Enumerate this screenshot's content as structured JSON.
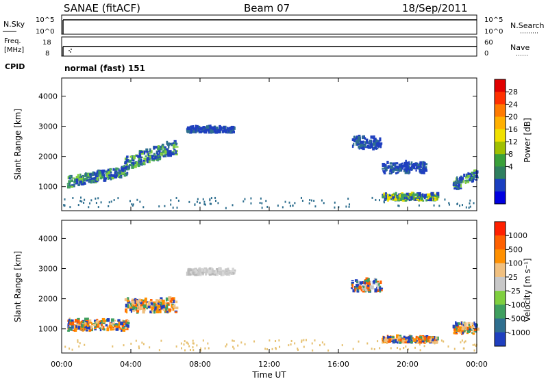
{
  "header": {
    "station": "SANAE (fitACF)",
    "beam": "Beam 07",
    "date": "18/Sep/2011"
  },
  "strip_panels": {
    "nsky": {
      "left_label": "N.Sky",
      "right_label": "N.Search",
      "left_ticks": [
        "10^5",
        "10^0"
      ],
      "right_ticks": [
        "10^5",
        "10^0"
      ]
    },
    "freq": {
      "left_label_1": "Freq.",
      "left_label_2": "[MHz]",
      "right_label": "Nave",
      "left_ticks": [
        "18",
        "8"
      ],
      "right_ticks": [
        "60",
        "0"
      ]
    },
    "cpid": {
      "label": "CPID",
      "value": "normal (fast) 151"
    }
  },
  "chart_data": [
    {
      "type": "heatmap",
      "name": "power",
      "ylabel": "Slant Range [km]",
      "yticks": [
        "4000",
        "3000",
        "2000",
        "1000"
      ],
      "ylim": [
        200,
        4600
      ],
      "xlim": [
        0,
        24
      ],
      "colorbar": {
        "label": "Power [dB]",
        "ticks": [
          "28",
          "24",
          "20",
          "16",
          "12",
          "8",
          "4"
        ],
        "colors": [
          "#0000e0",
          "#1a3fc0",
          "#2f7f5f",
          "#3aa03a",
          "#a0c000",
          "#f0e000",
          "#ffb000",
          "#ff7a00",
          "#ff3000",
          "#e00000"
        ]
      },
      "regions": [
        {
          "t0": 0.3,
          "t1": 3.8,
          "r0": 900,
          "r1": 1600,
          "level": "mid"
        },
        {
          "t0": 3.6,
          "t1": 6.6,
          "r0": 1500,
          "r1": 2400,
          "level": "mid"
        },
        {
          "t0": 7.2,
          "t1": 9.9,
          "r0": 2750,
          "r1": 3100,
          "level": "low"
        },
        {
          "t0": 16.7,
          "t1": 18.4,
          "r0": 2200,
          "r1": 3000,
          "level": "low"
        },
        {
          "t0": 18.5,
          "t1": 21.7,
          "r0": 500,
          "r1": 900,
          "level": "high"
        },
        {
          "t0": 18.5,
          "t1": 21.0,
          "r0": 1400,
          "r1": 2100,
          "level": "low"
        },
        {
          "t0": 22.6,
          "t1": 24.0,
          "r0": 800,
          "r1": 1500,
          "level": "mid"
        }
      ]
    },
    {
      "type": "heatmap",
      "name": "velocity",
      "ylabel": "Slant Range [km]",
      "yticks": [
        "4000",
        "3000",
        "2000",
        "1000"
      ],
      "ylim": [
        200,
        4600
      ],
      "xlim": [
        0,
        24
      ],
      "xticks": [
        "00:00",
        "04:00",
        "08:00",
        "12:00",
        "16:00",
        "20:00",
        "00:00"
      ],
      "xlabel": "Time UT",
      "colorbar": {
        "label": "Velocity [m s⁻¹]",
        "ticks": [
          "1000",
          "500",
          "100",
          "25",
          "-25",
          "-100",
          "-500",
          "-1000"
        ],
        "colors": [
          "#1f3fbf",
          "#2f6f8f",
          "#3f9f5f",
          "#7fcf3f",
          "#c8c8c8",
          "#f0c080",
          "#ff9000",
          "#ff6000",
          "#ff2000"
        ]
      },
      "regions": [
        {
          "t0": 0.3,
          "t1": 3.8,
          "r0": 900,
          "r1": 1600,
          "level": "neg"
        },
        {
          "t0": 3.6,
          "t1": 6.6,
          "r0": 1500,
          "r1": 2400,
          "level": "neg"
        },
        {
          "t0": 7.2,
          "t1": 9.9,
          "r0": 2750,
          "r1": 3100,
          "level": "zero"
        },
        {
          "t0": 16.7,
          "t1": 18.4,
          "r0": 2200,
          "r1": 3000,
          "level": "mixed"
        },
        {
          "t0": 18.5,
          "t1": 21.7,
          "r0": 500,
          "r1": 900,
          "level": "neg"
        },
        {
          "t0": 22.6,
          "t1": 24.0,
          "r0": 800,
          "r1": 1500,
          "level": "neg"
        }
      ]
    }
  ]
}
